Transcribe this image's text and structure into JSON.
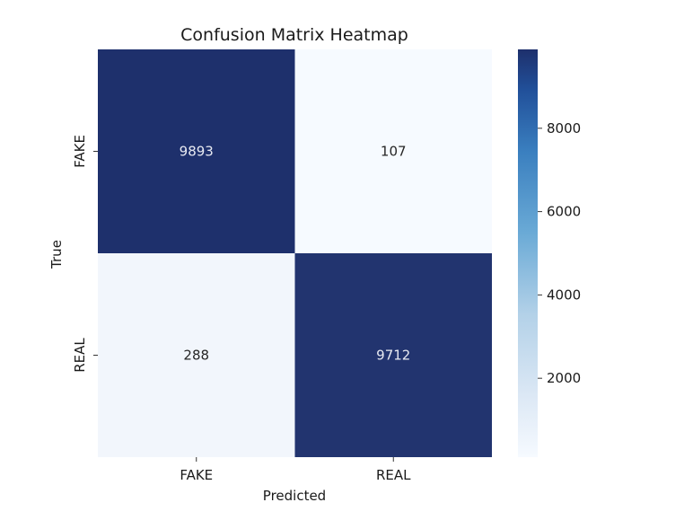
{
  "chart_data": {
    "type": "heatmap",
    "title": "Confusion Matrix Heatmap",
    "xlabel": "Predicted",
    "ylabel": "True",
    "x_categories": [
      "FAKE",
      "REAL"
    ],
    "y_categories": [
      "FAKE",
      "REAL"
    ],
    "values": [
      [
        9893,
        107
      ],
      [
        288,
        9712
      ]
    ],
    "colormap": "Blues",
    "color_range": [
      107,
      9893
    ],
    "colorbar_ticks": [
      2000,
      4000,
      6000,
      8000
    ],
    "colorbar_tick_labels": [
      "2000",
      "4000",
      "6000",
      "8000"
    ],
    "colors": {
      "high": "#1e306c",
      "low": "#f6faff",
      "text_on_dark": "#e8eaf2",
      "text_on_light": "#262626"
    }
  }
}
